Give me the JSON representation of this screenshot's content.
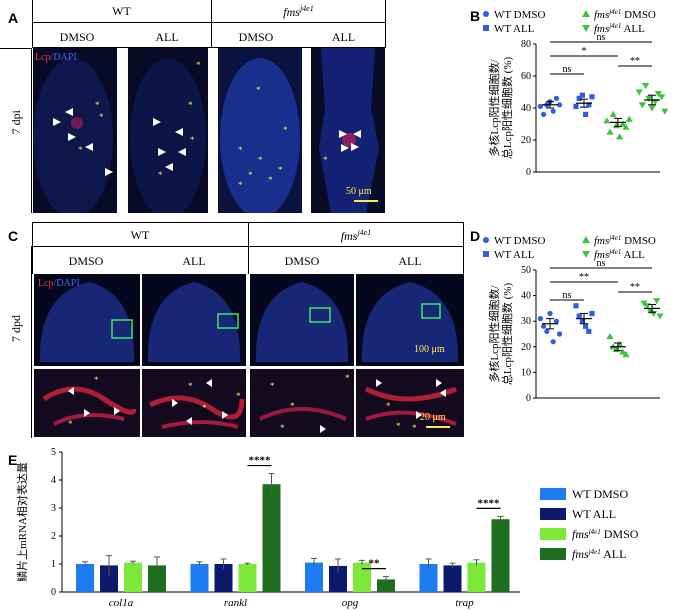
{
  "panels": {
    "A": {
      "letter": "A",
      "header_group1": "WT",
      "header_group2": "fms",
      "header_group2_sup": "j4e1",
      "sub_labels": [
        "DMSO",
        "ALL",
        "DMSO",
        "ALL"
      ],
      "row_label": "7 dpi",
      "stain_lcp": "Lcp",
      "stain_sep": "/",
      "stain_dapi": "DAPI",
      "scale_bar": "50 μm"
    },
    "C": {
      "letter": "C",
      "header_group1": "WT",
      "header_group2": "fms",
      "header_group2_sup": "j4e1",
      "sub_labels": [
        "DMSO",
        "ALL",
        "DMSO",
        "ALL"
      ],
      "row_label": "7 dpd",
      "stain_lcp": "Lcp",
      "stain_sep": "/",
      "stain_dapi": "DAPI",
      "scale_bar_top": "100 μm",
      "scale_bar_bottom": "20 μm"
    },
    "B": {
      "letter": "B"
    },
    "D": {
      "letter": "D"
    },
    "E": {
      "letter": "E"
    }
  },
  "chart_data": [
    {
      "id": "B",
      "type": "scatter",
      "ylabel_line1": "多核Lcp阳性细胞数/",
      "ylabel_line2": "总Lcp阳性细胞数 (%)",
      "ylim": [
        0,
        80
      ],
      "yticks": [
        "0",
        "20",
        "40",
        "60",
        "80"
      ],
      "legend": [
        {
          "label": "WT DMSO",
          "marker": "circle",
          "color": "#2f5de8"
        },
        {
          "label": "fms",
          "sup": "j4e1",
          "suffix": " DMSO",
          "marker": "triangle-up",
          "color": "#3ec43e"
        },
        {
          "label": "WT ALL",
          "marker": "square",
          "color": "#2f5de8"
        },
        {
          "label": "fms",
          "sup": "j4e1",
          "suffix": " ALL",
          "marker": "triangle-down",
          "color": "#3ec43e"
        }
      ],
      "series": [
        {
          "name": "WT DMSO",
          "mean": 42,
          "sem": 2,
          "values": [
            41,
            36,
            42,
            44,
            38,
            46,
            42
          ]
        },
        {
          "name": "WT ALL",
          "mean": 43,
          "sem": 2.5,
          "values": [
            41,
            46,
            48,
            36,
            42,
            47
          ]
        },
        {
          "name": "fms DMSO",
          "mean": 31,
          "sem": 2.5,
          "values": [
            32,
            25,
            36,
            29,
            22,
            30,
            28,
            33
          ]
        },
        {
          "name": "fms ALL",
          "mean": 45,
          "sem": 3,
          "values": [
            50,
            42,
            54,
            46,
            40,
            44,
            49,
            47,
            38
          ]
        }
      ],
      "significance": [
        {
          "from": 0,
          "to": 3,
          "label": "ns"
        },
        {
          "from": 0,
          "to": 2,
          "label": "*"
        },
        {
          "from": 0,
          "to": 1,
          "label": "ns"
        },
        {
          "from": 2,
          "to": 3,
          "label": "**"
        }
      ]
    },
    {
      "id": "D",
      "type": "scatter",
      "ylabel_line1": "多核Lcp阳性细胞数/",
      "ylabel_line2": "总Lcp阳性细胞数 (%)",
      "ylim": [
        0,
        50
      ],
      "yticks": [
        "0",
        "10",
        "20",
        "30",
        "40",
        "50"
      ],
      "legend": [
        {
          "label": "WT DMSO",
          "marker": "circle",
          "color": "#2f5de8"
        },
        {
          "label": "fms",
          "sup": "j4e1",
          "suffix": " DMSO",
          "marker": "triangle-up",
          "color": "#3ec43e"
        },
        {
          "label": "WT ALL",
          "marker": "square",
          "color": "#2f5de8"
        },
        {
          "label": "fms",
          "sup": "j4e1",
          "suffix": " ALL",
          "marker": "triangle-down",
          "color": "#3ec43e"
        }
      ],
      "series": [
        {
          "name": "WT DMSO",
          "mean": 29,
          "sem": 2,
          "values": [
            31,
            28,
            26,
            33,
            22,
            30,
            25
          ]
        },
        {
          "name": "WT ALL",
          "mean": 31,
          "sem": 2,
          "values": [
            36,
            32,
            30,
            28,
            26,
            33
          ]
        },
        {
          "name": "fms DMSO",
          "mean": 20,
          "sem": 1.5,
          "values": [
            24,
            20,
            19,
            21,
            18,
            17
          ]
        },
        {
          "name": "fms ALL",
          "mean": 35,
          "sem": 1.5,
          "values": [
            37,
            36,
            34,
            33,
            38,
            32
          ]
        }
      ],
      "significance": [
        {
          "from": 0,
          "to": 3,
          "label": "ns"
        },
        {
          "from": 0,
          "to": 2,
          "label": "**"
        },
        {
          "from": 0,
          "to": 1,
          "label": "ns"
        },
        {
          "from": 2,
          "to": 3,
          "label": "**"
        }
      ]
    },
    {
      "id": "E",
      "type": "bar",
      "ylabel": "鳞片上mRNA相对表达量",
      "ylim": [
        0,
        5
      ],
      "yticks": [
        "0",
        "1",
        "2",
        "3",
        "4",
        "5"
      ],
      "categories": [
        "col1a",
        "rankl",
        "opg",
        "trap"
      ],
      "series": [
        {
          "name": "WT DMSO",
          "color": "#1d7cf2",
          "values": [
            1.0,
            1.0,
            1.05,
            1.0
          ],
          "err": [
            0.08,
            0.08,
            0.15,
            0.18
          ]
        },
        {
          "name": "WT ALL",
          "color": "#0d1a6b",
          "values": [
            0.95,
            1.0,
            0.93,
            0.95
          ],
          "err": [
            0.35,
            0.18,
            0.25,
            0.08
          ]
        },
        {
          "name": "fms DMSO",
          "color": "#7ee83a",
          "values": [
            1.05,
            1.0,
            1.05,
            1.05
          ],
          "err": [
            0.05,
            0.03,
            0.08,
            0.1
          ]
        },
        {
          "name": "fms ALL",
          "color": "#1f6e1f",
          "values": [
            0.95,
            3.85,
            0.45,
            2.6
          ],
          "err": [
            0.3,
            0.38,
            0.1,
            0.1
          ]
        }
      ],
      "legend": [
        {
          "label": "WT DMSO",
          "color": "#1d7cf2"
        },
        {
          "label": "WT ALL",
          "color": "#0d1a6b"
        },
        {
          "label": "fms",
          "sup": "j4e1",
          "suffix": " DMSO",
          "color": "#7ee83a"
        },
        {
          "label": "fms",
          "sup": "j4e1",
          "suffix": " ALL",
          "color": "#1f6e1f"
        }
      ],
      "significance": [
        {
          "category": 1,
          "label": "****"
        },
        {
          "category": 2,
          "label": "**"
        },
        {
          "category": 3,
          "label": "****"
        }
      ]
    }
  ]
}
